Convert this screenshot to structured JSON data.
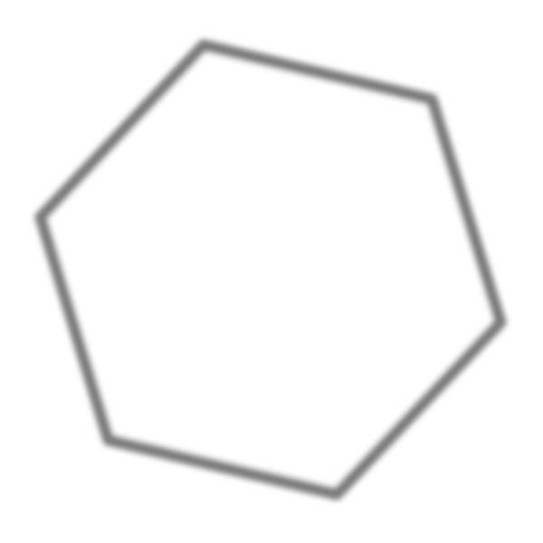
{
  "shape": {
    "kind": "hexagon",
    "style": "outline",
    "stroke_color": "#7a7a7a",
    "fill_color": "#ffffff",
    "blurred": true
  }
}
